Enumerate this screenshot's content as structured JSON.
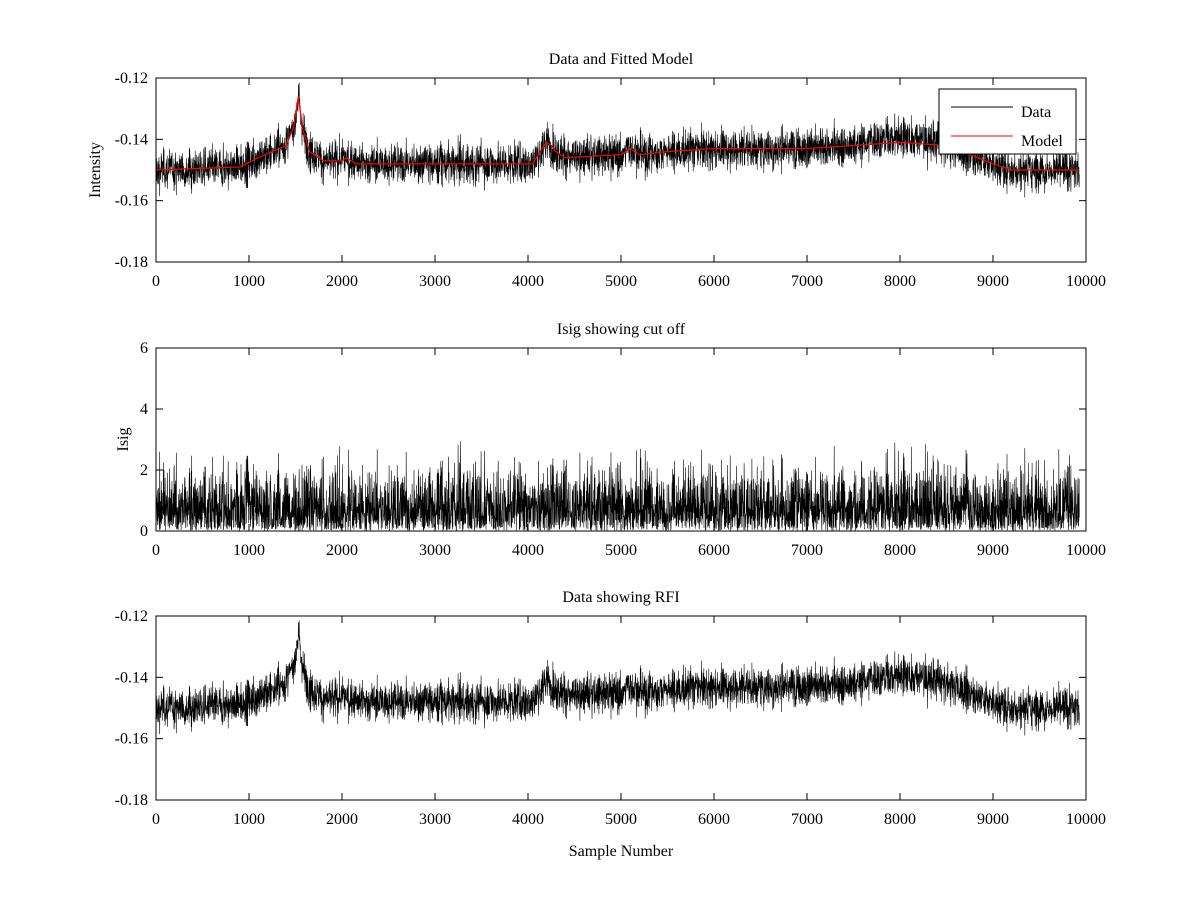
{
  "chart_data": [
    {
      "type": "line",
      "title": "Data and Fitted Model",
      "xlabel": "",
      "ylabel": "Intensity",
      "xlim": [
        0,
        10000
      ],
      "ylim": [
        -0.18,
        -0.12
      ],
      "xticks": [
        "0",
        "1000",
        "2000",
        "3000",
        "4000",
        "5000",
        "6000",
        "7000",
        "8000",
        "9000",
        "10000"
      ],
      "yticks": [
        "-0.18",
        "-0.16",
        "-0.14",
        "-0.12"
      ],
      "grid": false,
      "legend": {
        "position": "top-right",
        "entries": [
          "Data",
          "Model"
        ]
      },
      "series": [
        {
          "name": "Data",
          "color": "#000000",
          "description_points": "noisy samples around Model, approx ±0.007",
          "n_samples": 9930,
          "noise_amplitude": 0.006
        },
        {
          "name": "Model",
          "color": "#ff0000",
          "x": [
            0,
            900,
            1100,
            1400,
            1480,
            1530,
            1580,
            1650,
            1800,
            2000,
            2050,
            2150,
            3000,
            3500,
            4050,
            4150,
            4200,
            4250,
            4300,
            4400,
            5000,
            5100,
            5200,
            5500,
            6000,
            7000,
            7500,
            8000,
            8500,
            9000,
            9200,
            9930
          ],
          "y": [
            -0.15,
            -0.149,
            -0.146,
            -0.142,
            -0.136,
            -0.126,
            -0.137,
            -0.144,
            -0.147,
            -0.147,
            -0.146,
            -0.148,
            -0.148,
            -0.148,
            -0.148,
            -0.143,
            -0.141,
            -0.142,
            -0.144,
            -0.146,
            -0.145,
            -0.143,
            -0.145,
            -0.144,
            -0.143,
            -0.143,
            -0.142,
            -0.141,
            -0.142,
            -0.148,
            -0.15,
            -0.15
          ]
        }
      ]
    },
    {
      "type": "line",
      "title": "Isig showing cut off",
      "xlabel": "",
      "ylabel": "Isig",
      "xlim": [
        0,
        10000
      ],
      "ylim": [
        0,
        6
      ],
      "xticks": [
        "0",
        "1000",
        "2000",
        "3000",
        "4000",
        "5000",
        "6000",
        "7000",
        "8000",
        "9000",
        "10000"
      ],
      "yticks": [
        "0",
        "2",
        "4",
        "6"
      ],
      "grid": false,
      "series": [
        {
          "name": "Isig",
          "color": "#000000",
          "n_samples": 9930,
          "typical_range": [
            0,
            3.6
          ]
        }
      ]
    },
    {
      "type": "line",
      "title": "Data showing RFI",
      "xlabel": "Sample Number",
      "ylabel": "",
      "xlim": [
        0,
        10000
      ],
      "ylim": [
        -0.18,
        -0.12
      ],
      "xticks": [
        "0",
        "1000",
        "2000",
        "3000",
        "4000",
        "5000",
        "6000",
        "7000",
        "8000",
        "9000",
        "10000"
      ],
      "yticks": [
        "-0.18",
        "-0.16",
        "-0.14",
        "-0.12"
      ],
      "grid": false,
      "series": [
        {
          "name": "Data",
          "color": "#000000",
          "n_samples": 9930
        }
      ]
    }
  ]
}
